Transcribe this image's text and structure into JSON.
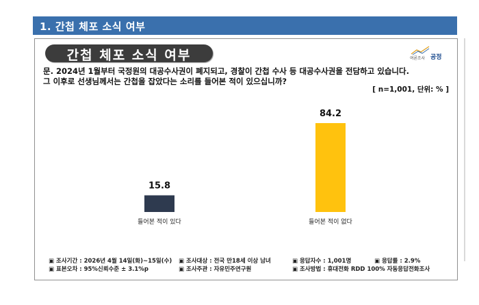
{
  "header": {
    "title": "1. 간첩 체포 소식 여부"
  },
  "card": {
    "pill_title": "간첩 체포 소식 여부",
    "logo": {
      "small": "여론조사",
      "main": "공정"
    },
    "question_lines": [
      "문. 2024년 1월부터 국정원의 대공수사권이 폐지되고, 경찰이 간첩 수사 등 대공수사권을 전담하고 있습니다.",
      "그 이후로 선생님께서는 간첩을 잡았다는 소리를 들어본 적이 있으십니까?"
    ],
    "note": "[ n=1,001, 단위: % ]"
  },
  "chart_data": {
    "type": "bar",
    "categories": [
      "들어본 적이 있다",
      "들어본 적이 없다"
    ],
    "values": [
      15.8,
      84.2
    ],
    "value_labels": [
      "15.8",
      "84.2"
    ],
    "colors": [
      "#2e3a4f",
      "#ffc20e"
    ],
    "ylim": [
      0,
      100
    ]
  },
  "footer": {
    "row1": [
      "▣ 조사기간 : 2026년 4월 14일(화)~15일(수)",
      "▣ 조사대상 : 전국 만18세 이상 남녀",
      "▣ 응답자수 : 1,001명",
      "▣ 응답률 : 2.9%"
    ],
    "row2": [
      "▣ 표본오차 : 95%신뢰수준 ± 3.1%p",
      "▣ 조사주관 : 자유민주연구원",
      "▣ 조사방법 : 휴대전화 RDD 100% 자동응답전화조사"
    ]
  }
}
